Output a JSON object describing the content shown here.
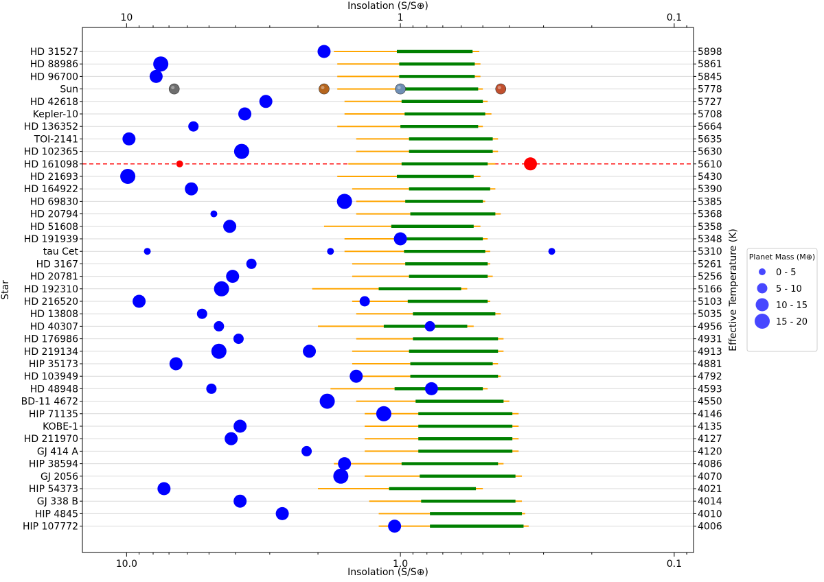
{
  "chart_data": {
    "type": "scatter",
    "xlabel_top": "Insolation (S/S⊕)",
    "xlabel_bottom": "Insolation (S/S⊕)",
    "ylabel_left": "Star",
    "ylabel_right": "Effective Temperature (K)",
    "x_scale": "log",
    "x_reversed": true,
    "xlim": [
      14.5,
      0.085
    ],
    "x_ticks_top": [
      "10",
      "1",
      "0.1"
    ],
    "x_ticks_bottom": [
      "10.0",
      "1.0",
      "0.1"
    ],
    "x_tick_values": [
      10,
      1,
      0.1
    ],
    "grid": "horizontal",
    "legend": {
      "title": "Planet Mass (M⊕)",
      "placement": "right",
      "entries": [
        "0 - 5",
        "5 - 10",
        "10 - 15",
        "15 - 20"
      ]
    },
    "highlight_star": "HD 161098",
    "colors": {
      "optimistic_hz": "#ffa500",
      "conservative_hz": "#008000",
      "planet": "#0000ff",
      "highlight": "#ff0000",
      "highlight_line": "#ff0000",
      "grid": "#d9d9d9"
    },
    "stars": [
      {
        "name": "HD 31527",
        "teff": "5898",
        "ohz": [
          1.75,
          0.515
        ],
        "chz": [
          1.03,
          0.545
        ],
        "planets": [
          {
            "s": 1.9,
            "m": "10 - 15"
          }
        ]
      },
      {
        "name": "HD 88986",
        "teff": "5861",
        "ohz": [
          1.7,
          0.51
        ],
        "chz": [
          1.01,
          0.535
        ],
        "planets": [
          {
            "s": 7.5,
            "m": "15 - 20"
          }
        ]
      },
      {
        "name": "HD 96700",
        "teff": "5845",
        "ohz": [
          1.7,
          0.51
        ],
        "chz": [
          1.01,
          0.535
        ],
        "planets": [
          {
            "s": 7.8,
            "m": "10 - 15"
          }
        ]
      },
      {
        "name": "Sun",
        "teff": "5778",
        "ohz": [
          1.7,
          0.5
        ],
        "chz": [
          0.97,
          0.52
        ],
        "planets": [
          {
            "s": 6.7,
            "m": "0 - 5",
            "body": "mercury"
          },
          {
            "s": 1.9,
            "m": "0 - 5",
            "body": "venus"
          },
          {
            "s": 1.0,
            "m": "0 - 5",
            "body": "earth"
          },
          {
            "s": 0.43,
            "m": "0 - 5",
            "body": "mars"
          }
        ]
      },
      {
        "name": "HD 42618",
        "teff": "5727",
        "ohz": [
          1.6,
          0.48
        ],
        "chz": [
          0.99,
          0.5
        ],
        "planets": [
          {
            "s": 3.1,
            "m": "10 - 15"
          }
        ]
      },
      {
        "name": "Kepler-10",
        "teff": "5708",
        "ohz": [
          1.6,
          0.465
        ],
        "chz": [
          0.965,
          0.49
        ],
        "planets": [
          {
            "s": 3.7,
            "m": "10 - 15"
          }
        ]
      },
      {
        "name": "HD 136352",
        "teff": "5664",
        "ohz": [
          1.7,
          0.5
        ],
        "chz": [
          1.0,
          0.52
        ],
        "planets": [
          {
            "s": 5.7,
            "m": "5 - 10"
          }
        ]
      },
      {
        "name": "TOI-2141",
        "teff": "5635",
        "ohz": [
          1.45,
          0.44
        ],
        "chz": [
          0.93,
          0.46
        ],
        "planets": [
          {
            "s": 9.8,
            "m": "10 - 15"
          }
        ]
      },
      {
        "name": "HD 102365",
        "teff": "5630",
        "ohz": [
          1.45,
          0.44
        ],
        "chz": [
          0.93,
          0.46
        ],
        "planets": [
          {
            "s": 3.8,
            "m": "15 - 20"
          }
        ]
      },
      {
        "name": "HD 161098",
        "teff": "5610",
        "ohz": [
          1.55,
          0.45
        ],
        "chz": [
          0.99,
          0.48
        ],
        "highlight": true,
        "planets": [
          {
            "s": 6.4,
            "m": "0 - 5"
          },
          {
            "s": 0.335,
            "m": "10 - 15"
          }
        ]
      },
      {
        "name": "HD 21693",
        "teff": "5430",
        "ohz": [
          1.7,
          0.51
        ],
        "chz": [
          1.03,
          0.54
        ],
        "planets": [
          {
            "s": 9.9,
            "m": "15 - 20"
          }
        ]
      },
      {
        "name": "HD 164922",
        "teff": "5390",
        "ohz": [
          1.5,
          0.45
        ],
        "chz": [
          0.93,
          0.47
        ],
        "planets": [
          {
            "s": 5.8,
            "m": "10 - 15"
          }
        ]
      },
      {
        "name": "HD 69830",
        "teff": "5385",
        "ohz": [
          1.45,
          0.49
        ],
        "chz": [
          0.96,
          0.5
        ],
        "planets": [
          {
            "s": 1.6,
            "m": "15 - 20"
          }
        ]
      },
      {
        "name": "HD 20794",
        "teff": "5368",
        "ohz": [
          1.45,
          0.43
        ],
        "chz": [
          0.92,
          0.45
        ],
        "planets": [
          {
            "s": 4.8,
            "m": "0 - 5"
          }
        ]
      },
      {
        "name": "HD 51608",
        "teff": "5358",
        "ohz": [
          1.9,
          0.51
        ],
        "chz": [
          1.08,
          0.54
        ],
        "planets": [
          {
            "s": 4.2,
            "m": "10 - 15"
          }
        ]
      },
      {
        "name": "HD 191939",
        "teff": "5348",
        "ohz": [
          1.6,
          0.48
        ],
        "chz": [
          0.97,
          0.5
        ],
        "planets": [
          {
            "s": 1.0,
            "m": "10 - 15"
          }
        ]
      },
      {
        "name": "tau Cet",
        "teff": "5310",
        "ohz": [
          1.6,
          0.47
        ],
        "chz": [
          0.97,
          0.49
        ],
        "planets": [
          {
            "s": 8.4,
            "m": "0 - 5"
          },
          {
            "s": 1.8,
            "m": "0 - 5"
          },
          {
            "s": 0.28,
            "m": "0 - 5"
          }
        ]
      },
      {
        "name": "HD 3167",
        "teff": "5261",
        "ohz": [
          1.5,
          0.47
        ],
        "chz": [
          0.96,
          0.48
        ],
        "planets": [
          {
            "s": 3.5,
            "m": "5 - 10"
          }
        ]
      },
      {
        "name": "HD 20781",
        "teff": "5256",
        "ohz": [
          1.5,
          0.46
        ],
        "chz": [
          0.93,
          0.48
        ],
        "planets": [
          {
            "s": 4.1,
            "m": "10 - 15"
          }
        ]
      },
      {
        "name": "HD 192310",
        "teff": "5166",
        "ohz": [
          2.1,
          0.57
        ],
        "chz": [
          1.2,
          0.6
        ],
        "planets": [
          {
            "s": 4.5,
            "m": "15 - 20"
          }
        ]
      },
      {
        "name": "HD 216520",
        "teff": "5103",
        "ohz": [
          1.5,
          0.47
        ],
        "chz": [
          0.94,
          0.48
        ],
        "planets": [
          {
            "s": 9.0,
            "m": "10 - 15"
          },
          {
            "s": 1.35,
            "m": "5 - 10"
          }
        ]
      },
      {
        "name": "HD 13808",
        "teff": "5035",
        "ohz": [
          1.45,
          0.43
        ],
        "chz": [
          0.9,
          0.45
        ],
        "planets": [
          {
            "s": 5.3,
            "m": "5 - 10"
          }
        ]
      },
      {
        "name": "HD 40307",
        "teff": "4956",
        "ohz": [
          2.0,
          0.54
        ],
        "chz": [
          1.15,
          0.57
        ],
        "planets": [
          {
            "s": 4.6,
            "m": "5 - 10"
          },
          {
            "s": 0.78,
            "m": "5 - 10"
          }
        ]
      },
      {
        "name": "HD 176986",
        "teff": "4931",
        "ohz": [
          1.45,
          0.42
        ],
        "chz": [
          0.9,
          0.44
        ],
        "planets": [
          {
            "s": 3.9,
            "m": "5 - 10"
          }
        ]
      },
      {
        "name": "HD 219134",
        "teff": "4913",
        "ohz": [
          1.5,
          0.42
        ],
        "chz": [
          0.93,
          0.44
        ],
        "planets": [
          {
            "s": 4.6,
            "m": "15 - 20"
          },
          {
            "s": 2.15,
            "m": "10 - 15"
          }
        ]
      },
      {
        "name": "HIP 35173",
        "teff": "4881",
        "ohz": [
          1.5,
          0.44
        ],
        "chz": [
          0.92,
          0.46
        ],
        "planets": [
          {
            "s": 6.6,
            "m": "10 - 15"
          }
        ]
      },
      {
        "name": "HD 103949",
        "teff": "4792",
        "ohz": [
          1.5,
          0.43
        ],
        "chz": [
          0.92,
          0.44
        ],
        "planets": [
          {
            "s": 1.45,
            "m": "10 - 15"
          }
        ]
      },
      {
        "name": "HD 48948",
        "teff": "4593",
        "ohz": [
          1.8,
          0.48
        ],
        "chz": [
          1.05,
          0.5
        ],
        "planets": [
          {
            "s": 4.9,
            "m": "5 - 10"
          },
          {
            "s": 0.77,
            "m": "10 - 15"
          }
        ]
      },
      {
        "name": "BD-11 4672",
        "teff": "4550",
        "ohz": [
          1.45,
          0.4
        ],
        "chz": [
          0.88,
          0.42
        ],
        "planets": [
          {
            "s": 1.85,
            "m": "15 - 20"
          }
        ]
      },
      {
        "name": "HIP 71135",
        "teff": "4146",
        "ohz": [
          1.35,
          0.37
        ],
        "chz": [
          0.86,
          0.39
        ],
        "planets": [
          {
            "s": 1.15,
            "m": "15 - 20"
          }
        ]
      },
      {
        "name": "KOBE-1",
        "teff": "4135",
        "ohz": [
          1.35,
          0.37
        ],
        "chz": [
          0.86,
          0.39
        ],
        "planets": [
          {
            "s": 3.85,
            "m": "10 - 15"
          }
        ]
      },
      {
        "name": "HD 211970",
        "teff": "4127",
        "ohz": [
          1.35,
          0.37
        ],
        "chz": [
          0.86,
          0.39
        ],
        "planets": [
          {
            "s": 4.15,
            "m": "10 - 15"
          }
        ]
      },
      {
        "name": "GJ 414 A",
        "teff": "4120",
        "ohz": [
          1.35,
          0.37
        ],
        "chz": [
          0.86,
          0.39
        ],
        "planets": [
          {
            "s": 2.2,
            "m": "5 - 10"
          }
        ]
      },
      {
        "name": "HIP 38594",
        "teff": "4086",
        "ohz": [
          1.75,
          0.42
        ],
        "chz": [
          0.99,
          0.44
        ],
        "planets": [
          {
            "s": 1.6,
            "m": "10 - 15"
          }
        ]
      },
      {
        "name": "GJ 2056",
        "teff": "4070",
        "ohz": [
          1.35,
          0.36
        ],
        "chz": [
          0.85,
          0.38
        ],
        "planets": [
          {
            "s": 1.65,
            "m": "15 - 20"
          }
        ]
      },
      {
        "name": "HIP 54373",
        "teff": "4021",
        "ohz": [
          2.0,
          0.5
        ],
        "chz": [
          1.1,
          0.53
        ],
        "planets": [
          {
            "s": 7.3,
            "m": "10 - 15"
          }
        ]
      },
      {
        "name": "GJ 338 B",
        "teff": "4014",
        "ohz": [
          1.3,
          0.36
        ],
        "chz": [
          0.84,
          0.38
        ],
        "planets": [
          {
            "s": 3.85,
            "m": "10 - 15"
          }
        ]
      },
      {
        "name": "HIP 4845",
        "teff": "4010",
        "ohz": [
          1.2,
          0.35
        ],
        "chz": [
          0.78,
          0.36
        ],
        "planets": [
          {
            "s": 2.7,
            "m": "10 - 15"
          }
        ]
      },
      {
        "name": "HIP 107772",
        "teff": "4006",
        "ohz": [
          1.2,
          0.34
        ],
        "chz": [
          0.78,
          0.355
        ],
        "planets": [
          {
            "s": 1.05,
            "m": "10 - 15"
          }
        ]
      }
    ]
  }
}
